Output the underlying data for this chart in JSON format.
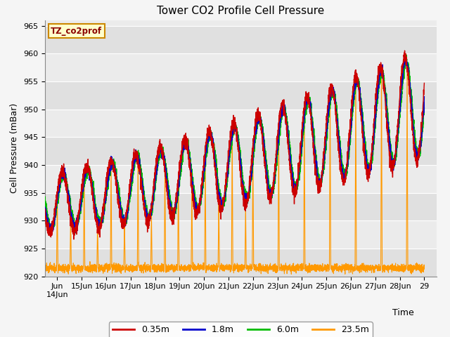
{
  "title": "Tower CO2 Profile Cell Pressure",
  "ylabel": "Cell Pressure (mBar)",
  "xlabel": "Time",
  "ylim": [
    920,
    966
  ],
  "bg_color": "#f5f5f5",
  "plot_bg": "#ebebeb",
  "legend_label": "TZ_co2prof",
  "series": {
    "0.35m": {
      "color": "#cc0000",
      "lw": 1.0
    },
    "1.8m": {
      "color": "#0000cc",
      "lw": 1.0
    },
    "6.0m": {
      "color": "#00bb00",
      "lw": 1.0
    },
    "23.5m": {
      "color": "#ff9900",
      "lw": 0.8
    }
  },
  "yticks": [
    920,
    925,
    930,
    935,
    940,
    945,
    950,
    955,
    960,
    965
  ],
  "title_fontsize": 11,
  "axis_label_fontsize": 9,
  "tick_fontsize": 8
}
